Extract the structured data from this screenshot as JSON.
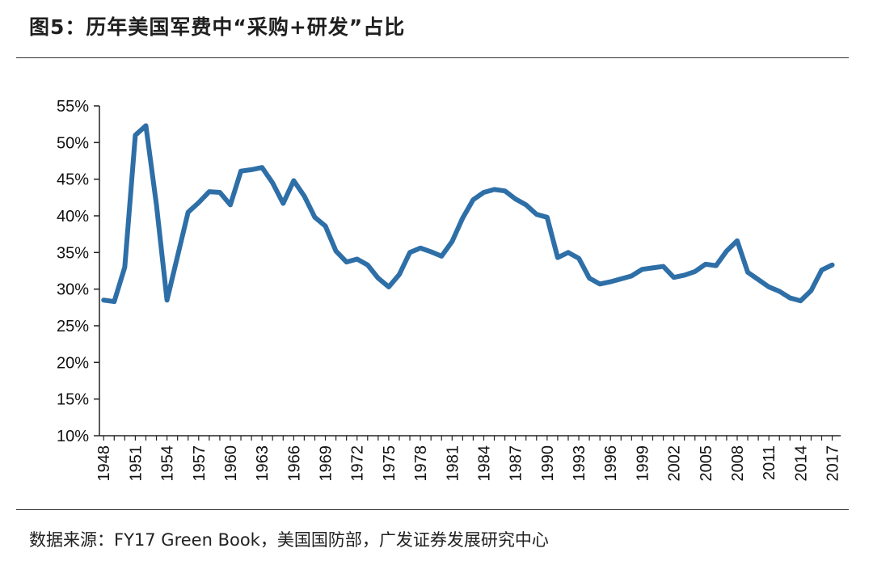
{
  "title": "图5：历年美国军费中“采购+研发”占比",
  "source": "数据来源：FY17 Green Book，美国国防部，广发证券发展研究中心",
  "colors": {
    "line": "#2e6fa7",
    "axis": "#222222",
    "rule": "#333333"
  },
  "chart_data": {
    "type": "line",
    "title": "历年美国军费中“采购+研发”占比",
    "xlabel": "",
    "ylabel": "",
    "ylim": [
      0.1,
      0.55
    ],
    "yticks": [
      "10%",
      "15%",
      "20%",
      "25%",
      "30%",
      "35%",
      "40%",
      "45%",
      "50%",
      "55%"
    ],
    "xticks": [
      "1948",
      "1951",
      "1954",
      "1957",
      "1960",
      "1963",
      "1966",
      "1969",
      "1972",
      "1975",
      "1978",
      "1981",
      "1984",
      "1987",
      "1990",
      "1993",
      "1996",
      "1999",
      "2002",
      "2005",
      "2008",
      "2011",
      "2014",
      "2017"
    ],
    "grid": false,
    "legend": "none",
    "x": [
      1948,
      1949,
      1950,
      1951,
      1952,
      1953,
      1954,
      1955,
      1956,
      1957,
      1958,
      1959,
      1960,
      1961,
      1962,
      1963,
      1964,
      1965,
      1966,
      1967,
      1968,
      1969,
      1970,
      1971,
      1972,
      1973,
      1974,
      1975,
      1976,
      1977,
      1978,
      1979,
      1980,
      1981,
      1982,
      1983,
      1984,
      1985,
      1986,
      1987,
      1988,
      1989,
      1990,
      1991,
      1992,
      1993,
      1994,
      1995,
      1996,
      1997,
      1998,
      1999,
      2000,
      2001,
      2002,
      2003,
      2004,
      2005,
      2006,
      2007,
      2008,
      2009,
      2010,
      2011,
      2012,
      2013,
      2014,
      2015,
      2016,
      2017
    ],
    "series": [
      {
        "name": "采购+研发占比",
        "values": [
          0.285,
          0.283,
          0.33,
          0.51,
          0.523,
          0.415,
          0.285,
          0.345,
          0.405,
          0.418,
          0.433,
          0.432,
          0.415,
          0.461,
          0.463,
          0.466,
          0.445,
          0.417,
          0.448,
          0.427,
          0.398,
          0.386,
          0.352,
          0.337,
          0.341,
          0.333,
          0.315,
          0.303,
          0.32,
          0.35,
          0.356,
          0.351,
          0.345,
          0.365,
          0.397,
          0.422,
          0.432,
          0.436,
          0.434,
          0.423,
          0.415,
          0.402,
          0.398,
          0.343,
          0.35,
          0.342,
          0.315,
          0.307,
          0.31,
          0.314,
          0.318,
          0.327,
          0.329,
          0.331,
          0.316,
          0.319,
          0.324,
          0.334,
          0.332,
          0.352,
          0.366,
          0.323,
          0.313,
          0.303,
          0.297,
          0.288,
          0.284,
          0.298,
          0.326,
          0.333
        ]
      }
    ]
  }
}
